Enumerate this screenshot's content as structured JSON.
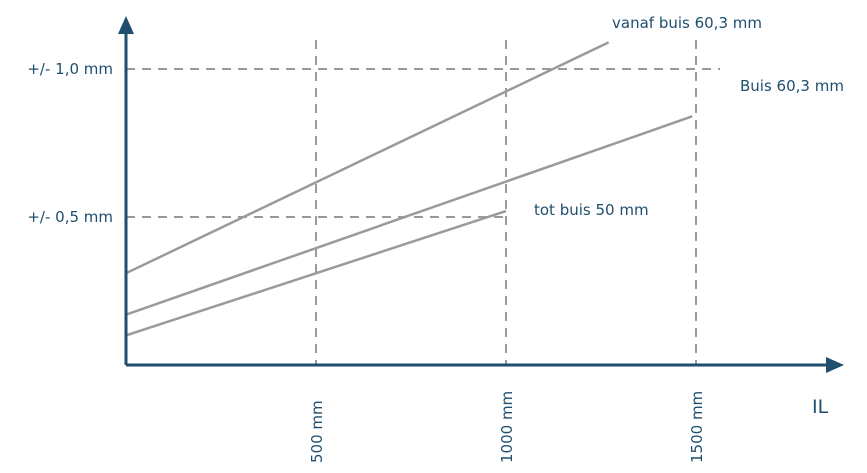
{
  "chart_data": {
    "type": "line",
    "title": "",
    "xlabel": "IL",
    "ylabel": "",
    "xlim": [
      0,
      1600
    ],
    "ylim": [
      0,
      1.2
    ],
    "grid": "dashed",
    "x_ticks": [
      {
        "value": 500,
        "label": "500 mm"
      },
      {
        "value": 1000,
        "label": "1000 mm"
      },
      {
        "value": 1500,
        "label": "1500 mm"
      }
    ],
    "y_ticks": [
      {
        "value": 0.5,
        "label": "+/- 0,5 mm"
      },
      {
        "value": 1.0,
        "label": "+/- 1,0 mm"
      }
    ],
    "series": [
      {
        "name": "vanaf buis 60,3 mm",
        "x": [
          0,
          1270
        ],
        "y": [
          0.31,
          1.09
        ]
      },
      {
        "name": "Buis 60,3 mm",
        "x": [
          0,
          1490
        ],
        "y": [
          0.17,
          0.84
        ]
      },
      {
        "name": "tot buis 50 mm",
        "x": [
          0,
          1000
        ],
        "y": [
          0.1,
          0.52
        ]
      }
    ]
  },
  "colors": {
    "axis": "#1f4e6e",
    "grid": "#9a9a9a",
    "line": "#9a9a9a",
    "text": "#1f4e6e"
  }
}
